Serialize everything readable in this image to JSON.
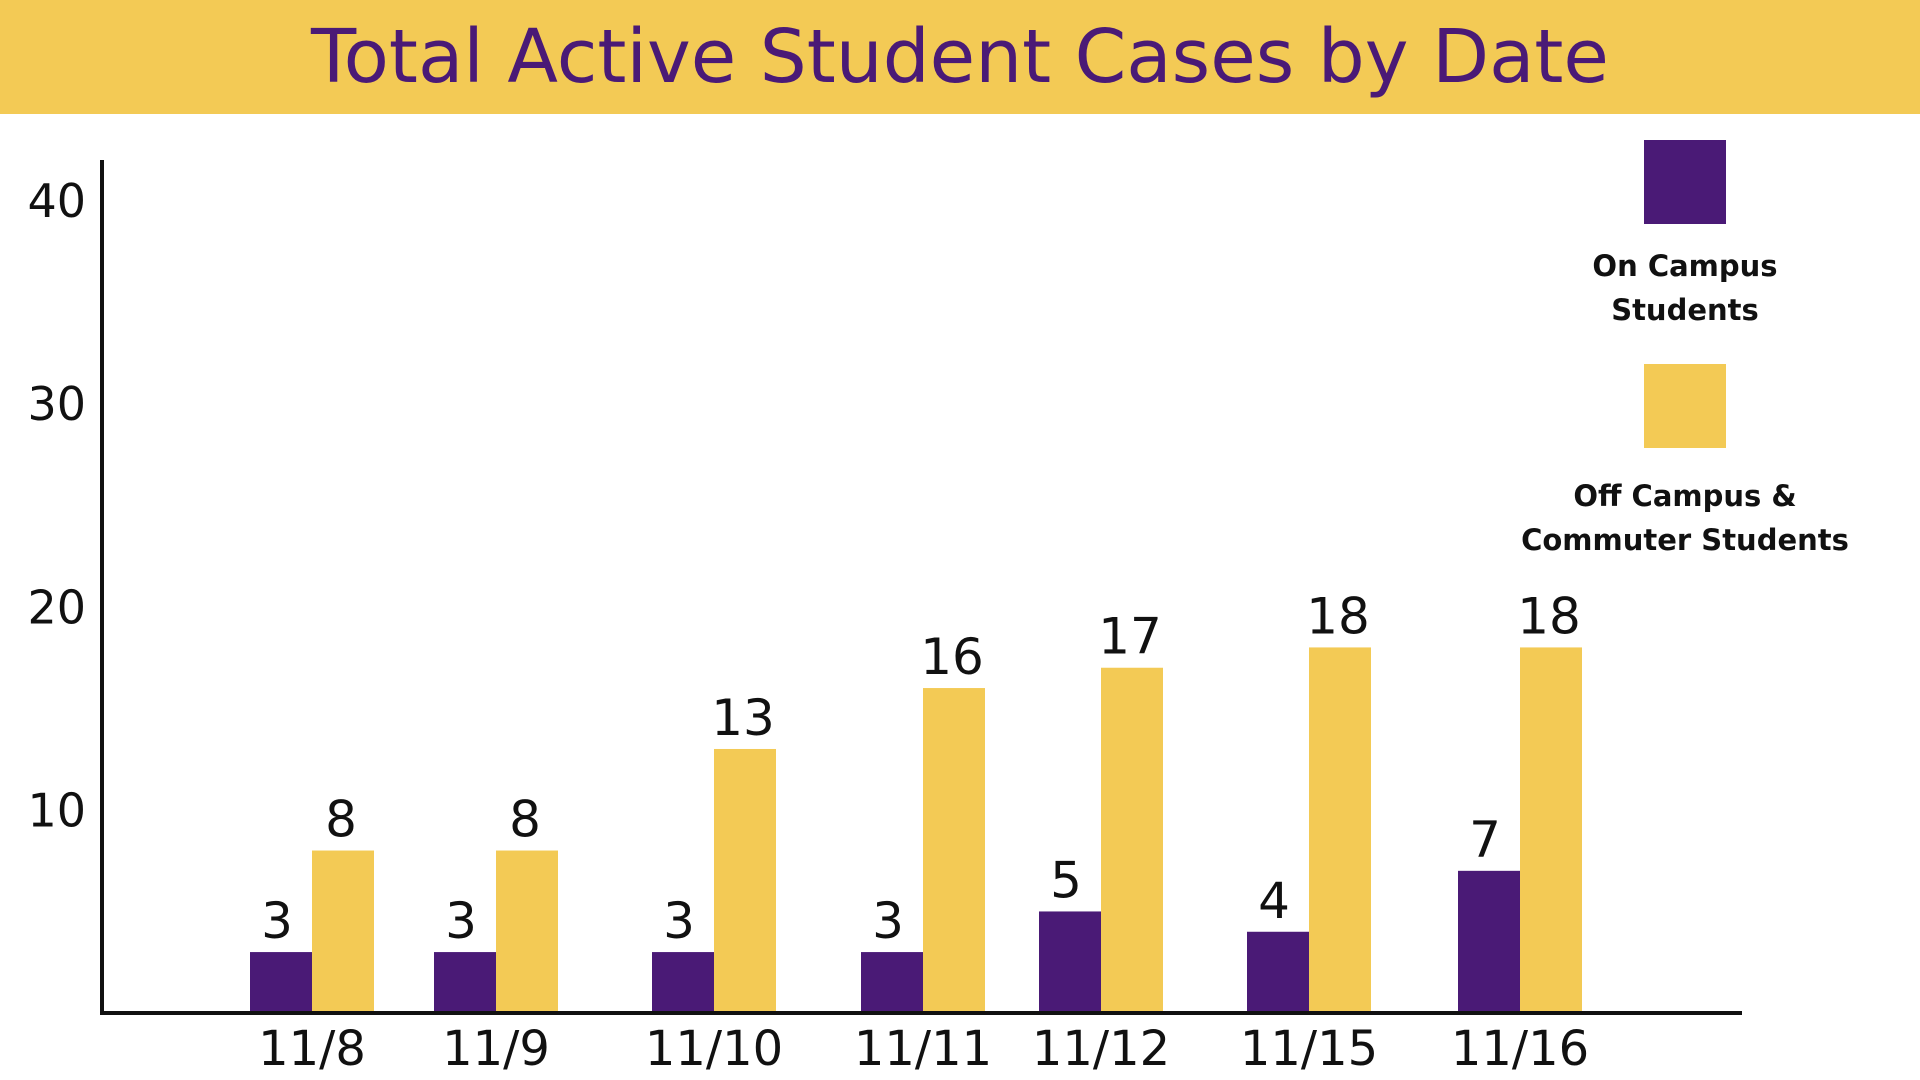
{
  "colors": {
    "banner": "#F3CA55",
    "title_text": "#4A1A76",
    "on_campus": "#4A1A76",
    "off_campus": "#F3CA55",
    "axis": "#111111",
    "label_text": "#111111"
  },
  "chart_data": {
    "type": "bar",
    "title": "Total Active Student Cases by Date",
    "categories": [
      "11/8",
      "11/9",
      "11/10",
      "11/11",
      "11/12",
      "11/15",
      "11/16"
    ],
    "series": [
      {
        "name": "On Campus Students",
        "values": [
          3,
          3,
          3,
          3,
          5,
          4,
          7
        ]
      },
      {
        "name": "Off Campus & Commuter Students",
        "values": [
          8,
          8,
          13,
          16,
          17,
          18,
          18
        ]
      }
    ],
    "yticks": [
      10,
      20,
      30,
      40
    ],
    "ylim": [
      0,
      42
    ],
    "grid": false,
    "legend_position": "right"
  },
  "legend": {
    "on_campus_label": "On Campus\nStudents",
    "off_campus_label": "Off Campus &\nCommuter Students"
  }
}
